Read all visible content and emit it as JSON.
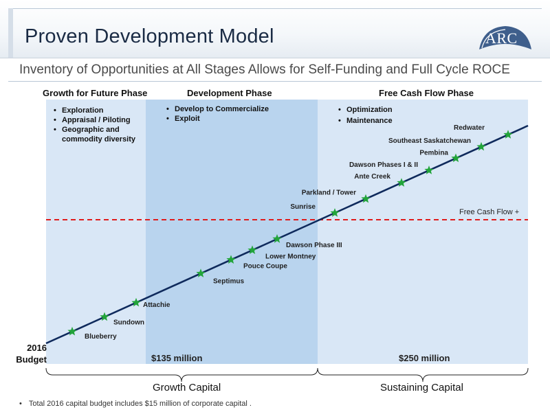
{
  "header": {
    "title": "Proven Development Model",
    "subtitle": "Inventory of Opportunities at All Stages Allows for Self-Funding and Full Cycle ROCE",
    "logo_text": "ARC"
  },
  "phases": [
    {
      "name": "Growth for Future Phase",
      "bullets": [
        "Exploration",
        "Appraisal / Piloting",
        "Geographic and commodity diversity"
      ]
    },
    {
      "name": "Development Phase",
      "bullets": [
        "Develop to Commercialize",
        "Exploit"
      ]
    },
    {
      "name": "Free Cash Flow Phase",
      "bullets": [
        "Optimization",
        "Maintenance"
      ]
    }
  ],
  "budget_label": "2016 Budget",
  "amounts": {
    "growth": "$135 million",
    "sustaining": "$250 million"
  },
  "free_cash_flow_label": "Free Cash Flow +",
  "projects": [
    "Blueberry",
    "Sundown",
    "Attachie",
    "Septimus",
    "Pouce Coupe",
    "Lower Montney",
    "Dawson Phase III",
    "Sunrise",
    "Parkland / Tower",
    "Ante Creek",
    "Dawson Phases I & II",
    "Pembina",
    "Southeast Saskatchewan",
    "Redwater"
  ],
  "capital_labels": {
    "growth": "Growth Capital",
    "sustaining": "Sustaining Capital"
  },
  "footnote": "Total 2016 capital budget includes $15 million of corporate capital .",
  "colors": {
    "line": "#0f2a5c",
    "star": "#22a43a",
    "fcf_line": "#e01b1b",
    "phase_light": "#d9e7f6",
    "phase_mid": "#b9d4ee"
  }
}
